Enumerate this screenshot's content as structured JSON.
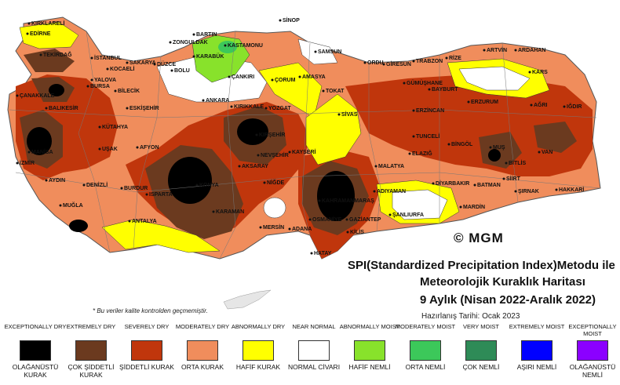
{
  "titles": {
    "line1": "SPI(Standardized Precipitation Index)Metodu ile",
    "line2": "Meteorolojik Kuraklık Haritası",
    "line3": "9 Aylık (Nisan 2022-Aralık 2022)",
    "date": "Hazırlanış Tarihi: Ocak 2023",
    "note": "* Bu veriler kalite kontrolden geçmemiştir.",
    "logo": "© MGM"
  },
  "legend": [
    {
      "en": "EXCEPTIONALLY DRY",
      "tr": "OLAĞANÜSTÜ KURAK",
      "color": "#000000"
    },
    {
      "en": "EXTREMELY DRY",
      "tr": "ÇOK ŞİDDETLİ KURAK",
      "color": "#6b3a1f"
    },
    {
      "en": "SEVERELY DRY",
      "tr": "ŞİDDETLİ KURAK",
      "color": "#c0360c"
    },
    {
      "en": "MODERATELY DRY",
      "tr": "ORTA KURAK",
      "color": "#f08d5c"
    },
    {
      "en": "ABNORMALLY DRY",
      "tr": "HAFİF KURAK",
      "color": "#ffff00"
    },
    {
      "en": "NEAR NORMAL",
      "tr": "NORMAL CİVARI",
      "color": "#ffffff"
    },
    {
      "en": "ABNORMALLY MOIST",
      "tr": "HAFİF NEMLİ",
      "color": "#88e22b"
    },
    {
      "en": "MODERATELY MOIST",
      "tr": "ORTA NEMLİ",
      "color": "#3cc85a"
    },
    {
      "en": "VERY MOIST",
      "tr": "ÇOK NEMLİ",
      "color": "#2e8b57"
    },
    {
      "en": "EXTREMELY MOIST",
      "tr": "AŞIRI NEMLİ",
      "color": "#0000ff"
    },
    {
      "en": "EXCEPTIONALLY MOIST",
      "tr": "OLAĞANÜSTÜ NEMLİ",
      "color": "#8b00ff"
    }
  ],
  "cities": [
    "KIRKLARELİ",
    "EDİRNE",
    "TEKİRDAĞ",
    "İSTANBUL",
    "KOCAELİ",
    "SAKARYA",
    "DÜZCE",
    "ZONGULDAK",
    "BARTIN",
    "KARABÜK",
    "KASTAMONU",
    "SİNOP",
    "SAMSUN",
    "ORDU",
    "GİRESUN",
    "TRABZON",
    "RİZE",
    "ARTVİN",
    "ARDAHAN",
    "KARS",
    "IĞDIR",
    "ÇANAKKALE",
    "BALIKESİR",
    "BURSA",
    "YALOVA",
    "BİLECİK",
    "BOLU",
    "ESKİŞEHİR",
    "ANKARA",
    "ÇANKIRI",
    "KIRIKKALE",
    "ÇORUM",
    "AMASYA",
    "TOKAT",
    "SİVAS",
    "YOZGAT",
    "GÜMÜŞHANE",
    "BAYBURT",
    "ERZURUM",
    "AĞRI",
    "ERZİNCAN",
    "TUNCELİ",
    "BİNGÖL",
    "MUŞ",
    "BİTLİS",
    "VAN",
    "SİİRT",
    "ŞIRNAK",
    "HAKKARİ",
    "BATMAN",
    "DİYARBAKIR",
    "MARDİN",
    "ŞANLIURFA",
    "ADIYAMAN",
    "MALATYA",
    "ELAZIĞ",
    "KAHRAMANMARAŞ",
    "OSMANİYE",
    "ADANA",
    "GAZİANTEP",
    "KİLİS",
    "HATAY",
    "MERSİN",
    "NİĞDE",
    "KAYSERİ",
    "NEVŞEHİR",
    "KIRŞEHİR",
    "AKSARAY",
    "KONYA",
    "KARAMAN",
    "ANTALYA",
    "ISPARTA",
    "BURDUR",
    "DENİZLİ",
    "AFYON",
    "KÜTAHYA",
    "UŞAK",
    "MANİSA",
    "İZMİR",
    "AYDIN",
    "MUĞLA"
  ]
}
